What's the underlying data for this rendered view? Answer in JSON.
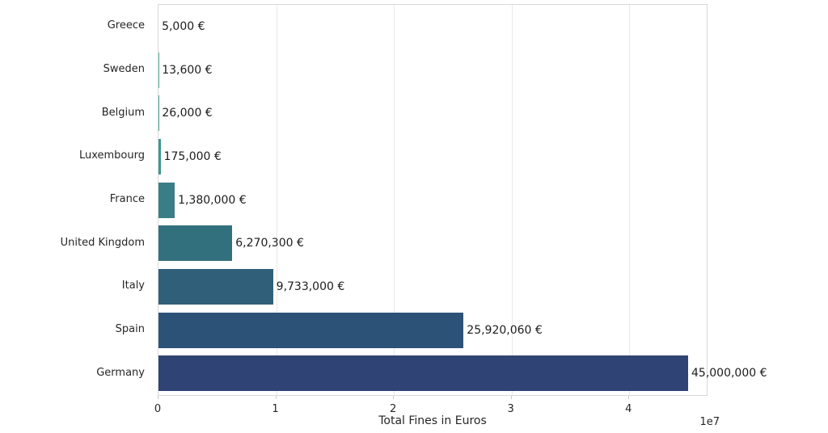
{
  "figure": {
    "background": "#ffffff",
    "grid_color": "#e9e9e9",
    "spine_color": "#d9d9d9",
    "text_color": "#262626"
  },
  "chart_data": {
    "type": "bar",
    "orientation": "horizontal",
    "title": "",
    "xlabel": "Total Fines in Euros",
    "ylabel": "",
    "offset_label": "1e7",
    "grid": true,
    "legend": false,
    "xlim": [
      0,
      46580000
    ],
    "categories": [
      "Greece",
      "Sweden",
      "Belgium",
      "Luxembourg",
      "France",
      "United Kingdom",
      "Italy",
      "Spain",
      "Germany"
    ],
    "values": [
      5000,
      13600,
      26000,
      175000,
      1380000,
      6270300,
      9733000,
      25920060,
      45000000
    ],
    "value_labels": [
      "5,000 €",
      "13,600 €",
      "26,000 €",
      "175,000 €",
      "1,380,000 €",
      "6,270,300 €",
      "9,733,000 €",
      "25,920,060 €",
      "45,000,000 €"
    ],
    "bar_colors": [
      "#65bd8b",
      "#58b08d",
      "#4ca390",
      "#429691",
      "#397e86",
      "#33707e",
      "#2f5f79",
      "#2d5278",
      "#2f4474"
    ],
    "x_ticks": [
      {
        "value": 0,
        "label": "0"
      },
      {
        "value": 10000000,
        "label": "1"
      },
      {
        "value": 20000000,
        "label": "2"
      },
      {
        "value": 30000000,
        "label": "3"
      },
      {
        "value": 40000000,
        "label": "4"
      }
    ]
  }
}
